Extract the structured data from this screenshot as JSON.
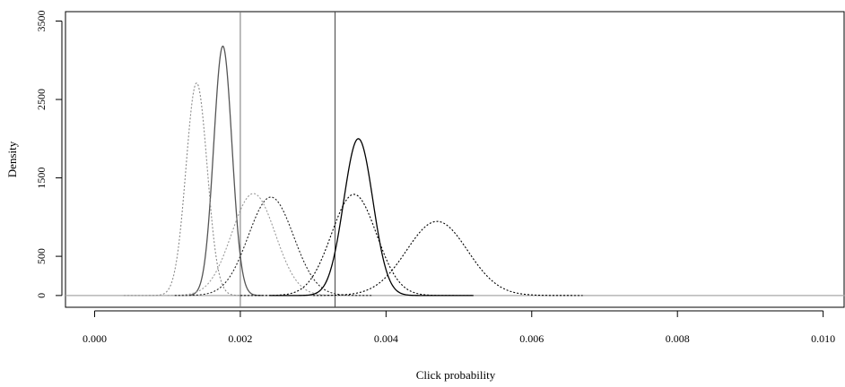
{
  "chart_data": {
    "type": "line",
    "title": "",
    "xlabel": "Click probability",
    "ylabel": "Density",
    "xlim": [
      -0.0004,
      0.0103
    ],
    "ylim": [
      -150,
      3620
    ],
    "x_ticks": [
      0.0,
      0.002,
      0.004,
      0.006,
      0.008,
      0.01
    ],
    "x_tick_labels": [
      "0.000",
      "0.002",
      "0.004",
      "0.006",
      "0.008",
      "0.010"
    ],
    "y_ticks": [
      0,
      500,
      1500,
      2500,
      3500
    ],
    "y_tick_labels": [
      "0",
      "500",
      "1500",
      "2500",
      "3500"
    ],
    "grid": false,
    "legend": "none",
    "reference_lines": {
      "horizontal_y": 0,
      "vertical_x": [
        0.002,
        0.0033
      ]
    },
    "series": [
      {
        "mean": 0.00176,
        "sd": 0.000125,
        "peak": 3180,
        "x_range": [
          0.0013,
          0.0023
        ],
        "style": "solid",
        "color": "#555555"
      },
      {
        "mean": 0.0014,
        "sd": 0.000145,
        "peak": 2710,
        "x_range": [
          0.0004,
          0.00215
        ],
        "style": "dotted",
        "color": "#8a8a8a"
      },
      {
        "mean": 0.00218,
        "sd": 0.0003,
        "peak": 1300,
        "x_range": [
          0.001,
          0.0036
        ],
        "style": "dotted",
        "color": "#9a9a9a"
      },
      {
        "mean": 0.00242,
        "sd": 0.00031,
        "peak": 1255,
        "x_range": [
          0.0011,
          0.0038
        ],
        "style": "dotted",
        "color": "#222222"
      },
      {
        "mean": 0.00362,
        "sd": 0.0002,
        "peak": 2000,
        "x_range": [
          0.0024,
          0.0052
        ],
        "style": "solid",
        "color": "#000000"
      },
      {
        "mean": 0.00356,
        "sd": 0.00031,
        "peak": 1290,
        "x_range": [
          0.002,
          0.0052
        ],
        "style": "dotted",
        "color": "#000000"
      },
      {
        "mean": 0.0047,
        "sd": 0.00042,
        "peak": 945,
        "x_range": [
          0.003,
          0.0067
        ],
        "style": "dotted",
        "color": "#000000"
      }
    ]
  }
}
